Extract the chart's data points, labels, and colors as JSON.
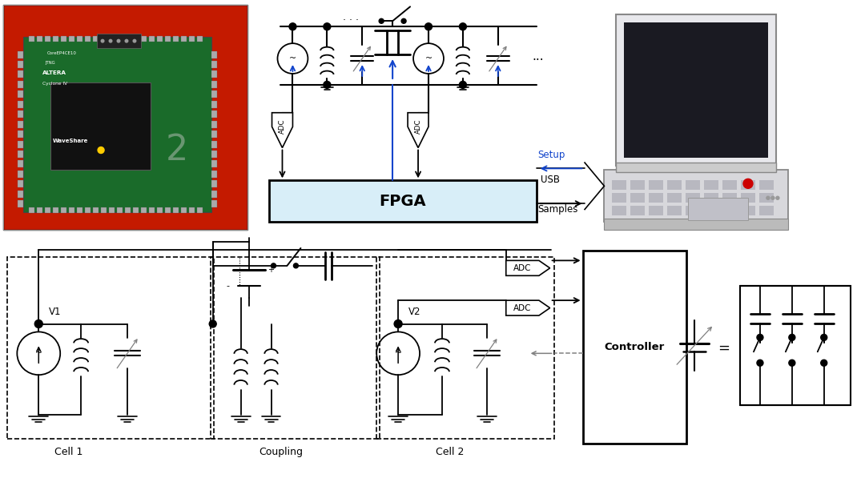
{
  "bg_color": "#ffffff",
  "blue": "#1144cc",
  "gray": "#888888",
  "fpga_fill": "#d8eef8",
  "photo_bg": "#c41a00",
  "pcb_green": "#1a6b2a",
  "pcb_dark": "#0d4018",
  "labels": {
    "fpga": "FPGA",
    "setup": "Setup",
    "usb": "USB",
    "samples": "Samples",
    "adc": "ADC",
    "cell1": "Cell 1",
    "coupling": "Coupling",
    "cell2": "Cell 2",
    "controller": "Controller",
    "v1": "V1",
    "v2": "V2"
  }
}
